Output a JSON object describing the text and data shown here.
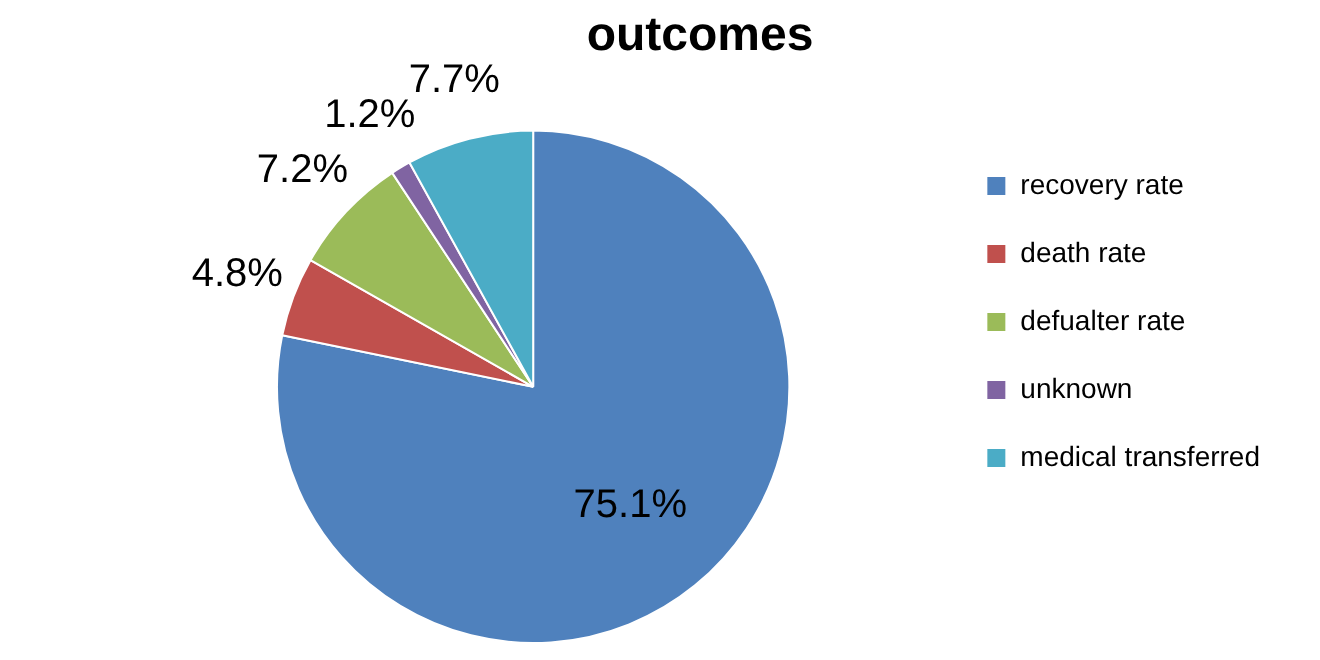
{
  "chart_data": {
    "type": "pie",
    "title": "outcomes",
    "categories": [
      "recovery rate",
      "death rate",
      "defualter rate",
      "unknown",
      "medical transferred"
    ],
    "values": [
      75.1,
      4.8,
      7.2,
      1.2,
      7.7
    ],
    "colors": [
      "#4f81bd",
      "#c0504d",
      "#9bbb59",
      "#8064a2",
      "#4bacc6"
    ],
    "value_labels": [
      "75.1%",
      "4.8%",
      "7.2%",
      "1.2%",
      "7.7%"
    ],
    "legend": "right"
  }
}
